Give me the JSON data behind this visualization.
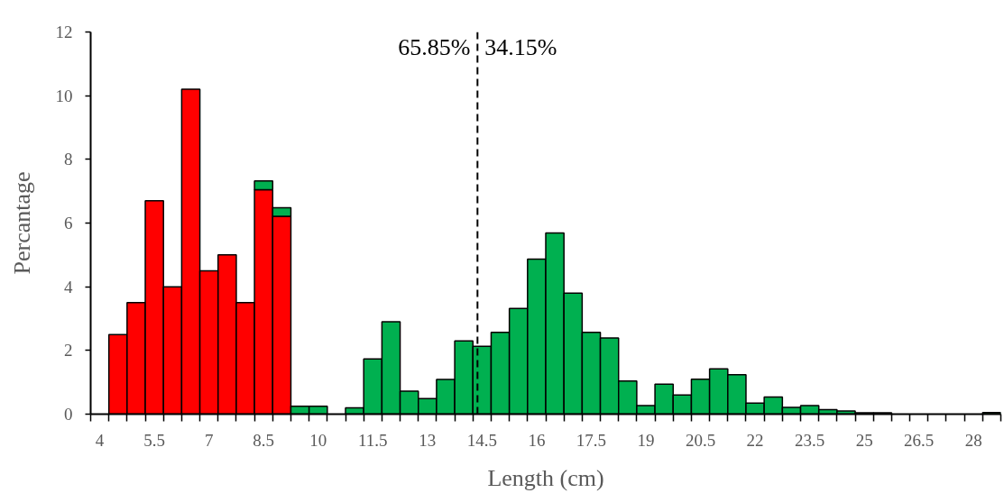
{
  "chart_data": {
    "type": "bar",
    "stacked": true,
    "xlabel": "Length (cm)",
    "ylabel": "Percantage",
    "x": [
      4.5,
      5,
      5.5,
      6,
      6.5,
      7,
      7.5,
      8,
      8.5,
      9,
      9.5,
      10,
      10.5,
      11,
      11.5,
      12,
      12.5,
      13,
      13.5,
      14,
      14.5,
      15,
      15.5,
      16,
      16.5,
      17,
      17.5,
      18,
      18.5,
      19,
      19.5,
      20,
      20.5,
      21,
      21.5,
      22,
      22.5,
      23,
      23.5,
      24,
      24.5,
      25,
      25.5,
      26,
      26.5,
      27,
      27.5,
      28,
      28.5
    ],
    "series": [
      {
        "color": "#ff0000",
        "values": [
          2.5,
          3.5,
          6.7,
          4.0,
          10.2,
          4.5,
          5.0,
          3.5,
          7.05,
          6.21,
          null,
          null,
          null,
          null,
          null,
          null,
          null,
          null,
          null,
          null,
          null,
          null,
          null,
          null,
          null,
          null,
          null,
          null,
          null,
          null,
          null,
          null,
          null,
          null,
          null,
          null,
          null,
          null,
          null,
          null,
          null,
          null,
          null,
          null,
          null,
          null,
          null,
          null,
          null
        ]
      },
      {
        "color": "#00b050",
        "values": [
          null,
          null,
          null,
          null,
          null,
          null,
          null,
          null,
          0.27,
          0.27,
          0.25,
          0.25,
          null,
          0.2,
          1.73,
          2.9,
          0.72,
          0.49,
          1.09,
          2.3,
          2.13,
          2.57,
          3.32,
          4.87,
          5.69,
          3.8,
          2.57,
          2.39,
          1.04,
          0.27,
          0.94,
          0.6,
          1.1,
          1.42,
          1.24,
          0.35,
          0.54,
          0.21,
          0.27,
          0.14,
          0.1,
          0.04,
          0.04,
          null,
          null,
          null,
          null,
          null,
          0.05
        ]
      }
    ],
    "xlim": [
      3.75,
      28.75
    ],
    "xticks": [
      4,
      5.5,
      7,
      8.5,
      10,
      11.5,
      13,
      14.5,
      16,
      17.5,
      19,
      20.5,
      22,
      23.5,
      25,
      26.5,
      28,
      {
        "value": 3.75,
        "label": null
      },
      {
        "value": 4.25,
        "label": null
      },
      {
        "value": 4.75,
        "label": null
      },
      {
        "value": 5.25,
        "label": null
      },
      {
        "value": 5.75,
        "label": null
      },
      {
        "value": 6.25,
        "label": null
      },
      {
        "value": 6.75,
        "label": null
      },
      {
        "value": 7.25,
        "label": null
      },
      {
        "value": 7.75,
        "label": null
      },
      {
        "value": 8.25,
        "label": null
      },
      {
        "value": 8.75,
        "label": null
      },
      {
        "value": 9.25,
        "label": null
      },
      {
        "value": 9.75,
        "label": null
      },
      {
        "value": 10.25,
        "label": null
      },
      {
        "value": 10.75,
        "label": null
      },
      {
        "value": 11.25,
        "label": null
      },
      {
        "value": 11.75,
        "label": null
      },
      {
        "value": 12.25,
        "label": null
      },
      {
        "value": 12.75,
        "label": null
      },
      {
        "value": 13.25,
        "label": null
      },
      {
        "value": 13.75,
        "label": null
      },
      {
        "value": 14.25,
        "label": null
      },
      {
        "value": 14.75,
        "label": null
      },
      {
        "value": 15.25,
        "label": null
      },
      {
        "value": 15.75,
        "label": null
      },
      {
        "value": 16.25,
        "label": null
      },
      {
        "value": 16.75,
        "label": null
      },
      {
        "value": 17.25,
        "label": null
      },
      {
        "value": 17.75,
        "label": null
      },
      {
        "value": 18.25,
        "label": null
      },
      {
        "value": 18.75,
        "label": null
      },
      {
        "value": 19.25,
        "label": null
      },
      {
        "value": 19.75,
        "label": null
      },
      {
        "value": 20.25,
        "label": null
      },
      {
        "value": 20.75,
        "label": null
      },
      {
        "value": 21.25,
        "label": null
      },
      {
        "value": 21.75,
        "label": null
      },
      {
        "value": 22.25,
        "label": null
      },
      {
        "value": 22.75,
        "label": null
      },
      {
        "value": 23.25,
        "label": null
      },
      {
        "value": 23.75,
        "label": null
      },
      {
        "value": 24.25,
        "label": null
      },
      {
        "value": 24.75,
        "label": null
      },
      {
        "value": 25.25,
        "label": null
      },
      {
        "value": 25.75,
        "label": null
      },
      {
        "value": 26.25,
        "label": null
      },
      {
        "value": 26.75,
        "label": null
      },
      {
        "value": 27.25,
        "label": null
      },
      {
        "value": 27.75,
        "label": null
      },
      {
        "value": 28.25,
        "label": null
      },
      {
        "value": 28.75,
        "label": null
      }
    ],
    "ylim": [
      0,
      12
    ],
    "yticks": [
      0,
      2,
      4,
      6,
      8,
      10,
      12
    ],
    "ref_lines": [
      {
        "axis": "x",
        "value": 14.375,
        "color": "#000000",
        "line_style": "dashed"
      }
    ],
    "annotations": [
      {
        "text": "65.85%",
        "x": 14.375,
        "y": 12
      },
      {
        "text": "34.15%",
        "x": 14.375,
        "y": 12
      }
    ],
    "grid": false
  }
}
